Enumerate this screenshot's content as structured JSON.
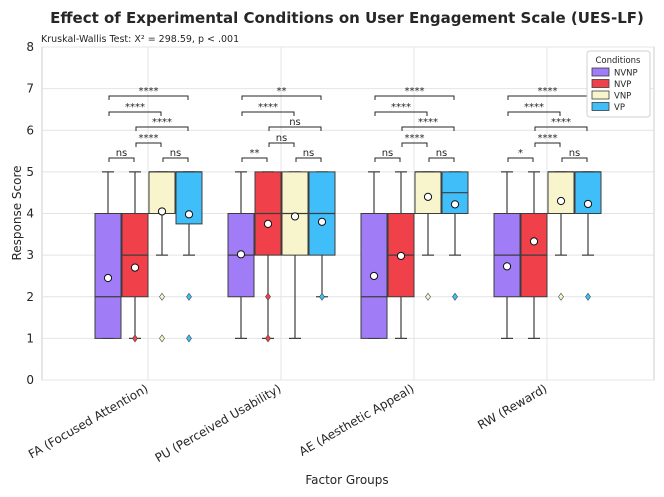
{
  "chart_data": {
    "type": "box",
    "title": "Effect of Experimental Conditions on User Engagement Scale (UES-LF)",
    "subtitle": "Kruskal-Wallis Test: X² = 298.59, p < .001",
    "xlabel": "Factor Groups",
    "ylabel": "Response Score",
    "ylim": [
      0,
      8
    ],
    "yticks": [
      0,
      1,
      2,
      3,
      4,
      5,
      6,
      7,
      8
    ],
    "grid": true,
    "legend": {
      "title": "Conditions",
      "position": "top-right",
      "entries": [
        {
          "name": "NVNP",
          "color": "#a17cf7"
        },
        {
          "name": "NVP",
          "color": "#f04049"
        },
        {
          "name": "VNP",
          "color": "#f8f5cc"
        },
        {
          "name": "VP",
          "color": "#3fbefa"
        }
      ]
    },
    "categories": [
      "FA (Focused Attention)",
      "PU (Perceived Usability)",
      "AE (Aesthetic Appeal)",
      "RW (Reward)"
    ],
    "series": [
      {
        "name": "NVNP",
        "boxes": [
          {
            "whislo": 1,
            "q1": 1,
            "med": 2,
            "q3": 4,
            "whishi": 5,
            "mean": 2.45,
            "fliers": []
          },
          {
            "whislo": 1,
            "q1": 2,
            "med": 3,
            "q3": 4,
            "whishi": 5,
            "mean": 3.02,
            "fliers": []
          },
          {
            "whislo": 1,
            "q1": 1,
            "med": 2,
            "q3": 4,
            "whishi": 5,
            "mean": 2.5,
            "fliers": []
          },
          {
            "whislo": 1,
            "q1": 2,
            "med": 3,
            "q3": 4,
            "whishi": 5,
            "mean": 2.73,
            "fliers": []
          }
        ]
      },
      {
        "name": "NVP",
        "boxes": [
          {
            "whislo": 1,
            "q1": 2,
            "med": 3,
            "q3": 4,
            "whishi": 5,
            "mean": 2.7,
            "fliers": [
              1
            ]
          },
          {
            "whislo": 1,
            "q1": 3,
            "med": 4,
            "q3": 5,
            "whishi": 5,
            "mean": 3.75,
            "fliers": [
              1,
              2
            ]
          },
          {
            "whislo": 1,
            "q1": 2,
            "med": 3,
            "q3": 4,
            "whishi": 5,
            "mean": 2.98,
            "fliers": []
          },
          {
            "whislo": 1,
            "q1": 2,
            "med": 3,
            "q3": 4,
            "whishi": 5,
            "mean": 3.33,
            "fliers": []
          }
        ]
      },
      {
        "name": "VNP",
        "boxes": [
          {
            "whislo": 3,
            "q1": 4,
            "med": 5,
            "q3": 5,
            "whishi": 5,
            "mean": 4.05,
            "fliers": [
              1,
              2
            ]
          },
          {
            "whislo": 1,
            "q1": 3,
            "med": 4,
            "q3": 5,
            "whishi": 5,
            "mean": 3.93,
            "fliers": []
          },
          {
            "whislo": 3,
            "q1": 4,
            "med": 5,
            "q3": 5,
            "whishi": 5,
            "mean": 4.4,
            "fliers": [
              2
            ]
          },
          {
            "whislo": 3,
            "q1": 4,
            "med": 5,
            "q3": 5,
            "whishi": 5,
            "mean": 4.3,
            "fliers": [
              2
            ]
          }
        ]
      },
      {
        "name": "VP",
        "boxes": [
          {
            "whislo": 3,
            "q1": 3.75,
            "med": 5,
            "q3": 5,
            "whishi": 5,
            "mean": 3.98,
            "fliers": [
              1,
              2
            ]
          },
          {
            "whislo": 2,
            "q1": 3,
            "med": 4,
            "q3": 5,
            "whishi": 5,
            "mean": 3.8,
            "fliers": [
              2
            ]
          },
          {
            "whislo": 3,
            "q1": 4,
            "med": 4.5,
            "q3": 5,
            "whishi": 5,
            "mean": 4.22,
            "fliers": [
              2
            ]
          },
          {
            "whislo": 3,
            "q1": 4,
            "med": 5,
            "q3": 5,
            "whishi": 5,
            "mean": 4.23,
            "fliers": [
              2
            ]
          }
        ]
      }
    ],
    "significance": [
      {
        "group": 0,
        "pairs": [
          {
            "from": 0,
            "to": 1,
            "label": "ns",
            "level": 0
          },
          {
            "from": 2,
            "to": 3,
            "label": "ns",
            "level": 0
          },
          {
            "from": 1,
            "to": 2,
            "label": "****",
            "level": 1
          },
          {
            "from": 1,
            "to": 3,
            "label": "****",
            "level": 2
          },
          {
            "from": 0,
            "to": 2,
            "label": "****",
            "level": 3
          },
          {
            "from": 0,
            "to": 3,
            "label": "****",
            "level": 4
          }
        ]
      },
      {
        "group": 1,
        "pairs": [
          {
            "from": 0,
            "to": 1,
            "label": "**",
            "level": 0
          },
          {
            "from": 2,
            "to": 3,
            "label": "ns",
            "level": 0
          },
          {
            "from": 1,
            "to": 2,
            "label": "ns",
            "level": 1
          },
          {
            "from": 1,
            "to": 3,
            "label": "ns",
            "level": 2
          },
          {
            "from": 0,
            "to": 2,
            "label": "****",
            "level": 3
          },
          {
            "from": 0,
            "to": 3,
            "label": "**",
            "level": 4
          }
        ]
      },
      {
        "group": 2,
        "pairs": [
          {
            "from": 0,
            "to": 1,
            "label": "ns",
            "level": 0
          },
          {
            "from": 2,
            "to": 3,
            "label": "ns",
            "level": 0
          },
          {
            "from": 1,
            "to": 2,
            "label": "****",
            "level": 1
          },
          {
            "from": 1,
            "to": 3,
            "label": "****",
            "level": 2
          },
          {
            "from": 0,
            "to": 2,
            "label": "****",
            "level": 3
          },
          {
            "from": 0,
            "to": 3,
            "label": "****",
            "level": 4
          }
        ]
      },
      {
        "group": 3,
        "pairs": [
          {
            "from": 0,
            "to": 1,
            "label": "*",
            "level": 0
          },
          {
            "from": 2,
            "to": 3,
            "label": "ns",
            "level": 0
          },
          {
            "from": 1,
            "to": 2,
            "label": "****",
            "level": 1
          },
          {
            "from": 1,
            "to": 3,
            "label": "****",
            "level": 2
          },
          {
            "from": 0,
            "to": 2,
            "label": "****",
            "level": 3
          },
          {
            "from": 0,
            "to": 3,
            "label": "****",
            "level": 4
          }
        ]
      }
    ]
  }
}
